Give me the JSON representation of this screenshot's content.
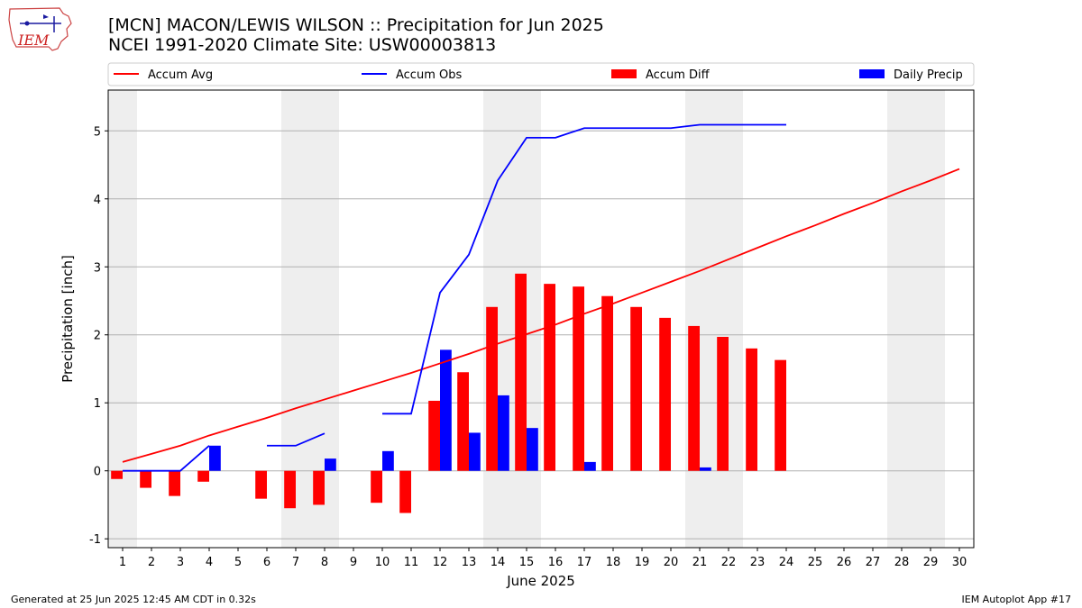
{
  "header": {
    "title_line1": "[MCN] MACON/LEWIS WILSON :: Precipitation for Jun 2025",
    "title_line2": "NCEI 1991-2020 Climate Site: USW00003813",
    "logo_text": "IEM"
  },
  "footer": {
    "generated": "Generated at 25 Jun 2025 12:45 AM CDT in 0.32s",
    "app": "IEM Autoplot App #17"
  },
  "colors": {
    "accum_avg": "#ff0000",
    "accum_obs": "#0000ff",
    "accum_diff": "#ff0000",
    "daily_precip": "#0000ff",
    "weekend_shade": "#eeeeee",
    "grid": "#b0b0b0"
  },
  "chart_data": {
    "type": "bar",
    "xlabel": "June 2025",
    "ylabel": "Precipitation [inch]",
    "xlim": [
      0.5,
      30.5
    ],
    "ylim": [
      -1.13,
      5.6
    ],
    "x_ticks": [
      1,
      2,
      3,
      4,
      5,
      6,
      7,
      8,
      9,
      10,
      11,
      12,
      13,
      14,
      15,
      16,
      17,
      18,
      19,
      20,
      21,
      22,
      23,
      24,
      25,
      26,
      27,
      28,
      29,
      30
    ],
    "y_ticks": [
      -1,
      0,
      1,
      2,
      3,
      4,
      5
    ],
    "grid": "horizontal",
    "legend_position": "top",
    "legend": [
      "Accum Avg",
      "Accum Obs",
      "Accum Diff",
      "Daily Precip"
    ],
    "weekend_shading": [
      [
        0.5,
        1.5
      ],
      [
        6.5,
        8.5
      ],
      [
        13.5,
        15.5
      ],
      [
        20.5,
        22.5
      ],
      [
        27.5,
        29.5
      ]
    ],
    "days": [
      1,
      2,
      3,
      4,
      5,
      6,
      7,
      8,
      9,
      10,
      11,
      12,
      13,
      14,
      15,
      16,
      17,
      18,
      19,
      20,
      21,
      22,
      23,
      24,
      25,
      26,
      27,
      28,
      29,
      30
    ],
    "series": [
      {
        "name": "Accum Avg",
        "kind": "line",
        "values": [
          0.13,
          0.25,
          0.37,
          0.52,
          0.65,
          0.78,
          0.92,
          1.05,
          1.18,
          1.31,
          1.44,
          1.58,
          1.72,
          1.87,
          2.01,
          2.15,
          2.31,
          2.46,
          2.62,
          2.78,
          2.94,
          3.11,
          3.28,
          3.45,
          3.61,
          3.78,
          3.94,
          4.11,
          4.27,
          4.44
        ]
      },
      {
        "name": "Accum Obs",
        "kind": "line",
        "values": [
          0.0,
          0.0,
          0.0,
          0.37,
          null,
          0.37,
          0.37,
          0.55,
          null,
          0.84,
          0.84,
          2.62,
          3.18,
          4.27,
          4.9,
          4.9,
          5.04,
          5.04,
          5.04,
          5.04,
          5.09,
          5.09,
          5.09,
          5.09,
          null,
          null,
          null,
          null,
          null,
          null
        ]
      },
      {
        "name": "Accum Diff",
        "kind": "bar",
        "values": [
          -0.12,
          -0.25,
          -0.37,
          -0.16,
          null,
          -0.41,
          -0.55,
          -0.5,
          null,
          -0.47,
          -0.62,
          1.03,
          1.45,
          2.41,
          2.9,
          2.75,
          2.71,
          2.57,
          2.41,
          2.25,
          2.13,
          1.97,
          1.8,
          1.63,
          null,
          null,
          null,
          null,
          null,
          null
        ]
      },
      {
        "name": "Daily Precip",
        "kind": "bar",
        "values": [
          0.0,
          0.0,
          0.0,
          0.37,
          null,
          0.0,
          0.0,
          0.18,
          null,
          0.29,
          0.0,
          1.78,
          0.56,
          1.11,
          0.63,
          0.0,
          0.13,
          0.0,
          0.0,
          0.0,
          0.05,
          0.0,
          0.0,
          0.0,
          null,
          null,
          null,
          null,
          null,
          null
        ]
      }
    ]
  }
}
